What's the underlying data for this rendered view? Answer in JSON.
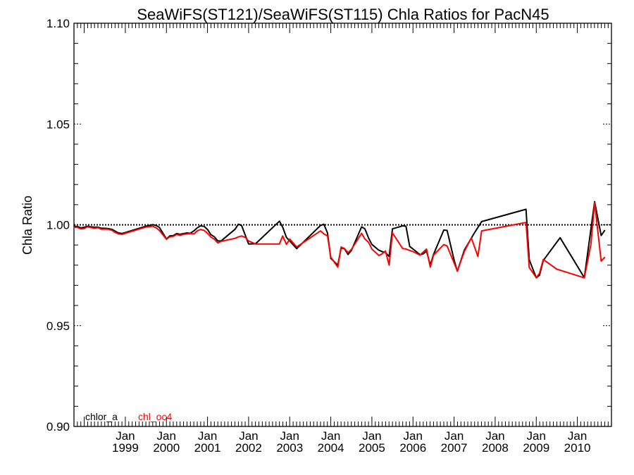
{
  "chart_data": {
    "type": "line",
    "title": "SeaWiFS(ST121)/SeaWiFS(ST115)  Chla Ratios for PacN45",
    "xlabel": "",
    "ylabel": "Chla Ratio",
    "ylim": [
      0.9,
      1.1
    ],
    "xlim": [
      1997.75,
      2010.83
    ],
    "y_ticks": [
      {
        "value": 0.9,
        "label": "0.90"
      },
      {
        "value": 0.95,
        "label": "0.95"
      },
      {
        "value": 1.0,
        "label": "1.00"
      },
      {
        "value": 1.05,
        "label": "1.05"
      },
      {
        "value": 1.1,
        "label": "1.10"
      }
    ],
    "x_ticks": [
      {
        "value": 1999,
        "label_top": "Jan",
        "label_bottom": "1999"
      },
      {
        "value": 2000,
        "label_top": "Jan",
        "label_bottom": "2000"
      },
      {
        "value": 2001,
        "label_top": "Jan",
        "label_bottom": "2001"
      },
      {
        "value": 2002,
        "label_top": "Jan",
        "label_bottom": "2002"
      },
      {
        "value": 2003,
        "label_top": "Jan",
        "label_bottom": "2003"
      },
      {
        "value": 2004,
        "label_top": "Jan",
        "label_bottom": "2004"
      },
      {
        "value": 2005,
        "label_top": "Jan",
        "label_bottom": "2005"
      },
      {
        "value": 2006,
        "label_top": "Jan",
        "label_bottom": "2006"
      },
      {
        "value": 2007,
        "label_top": "Jan",
        "label_bottom": "2007"
      },
      {
        "value": 2008,
        "label_top": "Jan",
        "label_bottom": "2008"
      },
      {
        "value": 2009,
        "label_top": "Jan",
        "label_bottom": "2009"
      },
      {
        "value": 2010,
        "label_top": "Jan",
        "label_bottom": "2010"
      }
    ],
    "reference_line": {
      "y": 1.0,
      "style": "dotted",
      "color": "#000000"
    },
    "legend": {
      "placement": "bottom-left"
    },
    "series": [
      {
        "name": "chlor_a",
        "color": "#000000",
        "points": [
          [
            1997.75,
            0.9992
          ],
          [
            1997.83,
            0.9992
          ],
          [
            1997.92,
            0.9985
          ],
          [
            1998.0,
            0.9988
          ],
          [
            1998.08,
            0.9993
          ],
          [
            1998.17,
            0.999
          ],
          [
            1998.25,
            0.9988
          ],
          [
            1998.33,
            0.9989
          ],
          [
            1998.42,
            0.9983
          ],
          [
            1998.5,
            0.9983
          ],
          [
            1998.58,
            0.9981
          ],
          [
            1998.67,
            0.9978
          ],
          [
            1998.75,
            0.9969
          ],
          [
            1998.83,
            0.996
          ],
          [
            1998.92,
            0.9957
          ],
          [
            1999.0,
            0.9962
          ],
          [
            1999.5,
            0.9993
          ],
          [
            1999.67,
            1.0001
          ],
          [
            1999.75,
            0.9997
          ],
          [
            1999.83,
            0.9987
          ],
          [
            2000.0,
            0.993
          ],
          [
            2000.08,
            0.9945
          ],
          [
            2000.17,
            0.9947
          ],
          [
            2000.25,
            0.9957
          ],
          [
            2000.33,
            0.9953
          ],
          [
            2000.42,
            0.9957
          ],
          [
            2000.5,
            0.996
          ],
          [
            2000.58,
            0.9958
          ],
          [
            2000.67,
            0.997
          ],
          [
            2000.75,
            0.9985
          ],
          [
            2000.83,
            0.9995
          ],
          [
            2000.92,
            0.9992
          ],
          [
            2001.0,
            0.9977
          ],
          [
            2001.08,
            0.9952
          ],
          [
            2001.17,
            0.994
          ],
          [
            2001.25,
            0.992
          ],
          [
            2001.33,
            0.992
          ],
          [
            2001.67,
            0.9978
          ],
          [
            2001.75,
            1.0003
          ],
          [
            2001.83,
            0.9996
          ],
          [
            2002.0,
            0.9905
          ],
          [
            2002.17,
            0.9906
          ],
          [
            2002.75,
            1.0018
          ],
          [
            2002.83,
            0.9988
          ],
          [
            2002.92,
            0.9938
          ],
          [
            2003.17,
            0.9882
          ],
          [
            2003.75,
            0.9997
          ],
          [
            2003.83,
            1.0003
          ],
          [
            2003.92,
            0.996
          ],
          [
            2004.0,
            0.9834
          ],
          [
            2004.17,
            0.98
          ],
          [
            2004.25,
            0.9884
          ],
          [
            2004.33,
            0.9882
          ],
          [
            2004.42,
            0.9853
          ],
          [
            2004.5,
            0.9873
          ],
          [
            2004.75,
            0.999
          ],
          [
            2004.83,
            0.998
          ],
          [
            2004.92,
            0.9934
          ],
          [
            2005.0,
            0.9903
          ],
          [
            2005.17,
            0.9874
          ],
          [
            2005.25,
            0.9867
          ],
          [
            2005.33,
            0.9863
          ],
          [
            2005.42,
            0.9843
          ],
          [
            2005.5,
            0.998
          ],
          [
            2005.75,
            0.9995
          ],
          [
            2005.83,
            0.9993
          ],
          [
            2005.92,
            0.9893
          ],
          [
            2006.0,
            0.988
          ],
          [
            2006.17,
            0.9852
          ],
          [
            2006.25,
            0.9856
          ],
          [
            2006.33,
            0.987
          ],
          [
            2006.42,
            0.98
          ],
          [
            2006.5,
            0.9853
          ],
          [
            2006.75,
            0.9974
          ],
          [
            2006.83,
            0.9972
          ],
          [
            2007.0,
            0.9826
          ],
          [
            2007.08,
            0.977
          ],
          [
            2007.25,
            0.9875
          ],
          [
            2007.5,
            0.9962
          ],
          [
            2007.67,
            1.0016
          ],
          [
            2008.75,
            1.0077
          ],
          [
            2008.83,
            0.9827
          ],
          [
            2009.0,
            0.9737
          ],
          [
            2009.08,
            0.975
          ],
          [
            2009.17,
            0.9823
          ],
          [
            2009.58,
            0.9936
          ],
          [
            2010.17,
            0.9738
          ],
          [
            2010.42,
            1.0115
          ],
          [
            2010.58,
            0.9947
          ],
          [
            2010.67,
            0.9974
          ]
        ]
      },
      {
        "name": "chl_oc4",
        "color": "#ff0000",
        "points": [
          [
            1997.75,
            0.9988
          ],
          [
            1997.83,
            0.9987
          ],
          [
            1997.92,
            0.998
          ],
          [
            1998.0,
            0.9982
          ],
          [
            1998.08,
            0.999
          ],
          [
            1998.17,
            0.9986
          ],
          [
            1998.25,
            0.9983
          ],
          [
            1998.33,
            0.9986
          ],
          [
            1998.42,
            0.9978
          ],
          [
            1998.5,
            0.9979
          ],
          [
            1998.58,
            0.9978
          ],
          [
            1998.67,
            0.9973
          ],
          [
            1998.75,
            0.9963
          ],
          [
            1998.83,
            0.9955
          ],
          [
            1998.92,
            0.9953
          ],
          [
            1999.0,
            0.9958
          ],
          [
            1999.5,
            0.9989
          ],
          [
            1999.67,
            0.9993
          ],
          [
            1999.75,
            0.9985
          ],
          [
            1999.83,
            0.9972
          ],
          [
            2000.0,
            0.9928
          ],
          [
            2000.08,
            0.994
          ],
          [
            2000.17,
            0.9943
          ],
          [
            2000.25,
            0.9952
          ],
          [
            2000.33,
            0.9948
          ],
          [
            2000.42,
            0.9953
          ],
          [
            2000.5,
            0.9955
          ],
          [
            2000.58,
            0.9957
          ],
          [
            2000.67,
            0.9955
          ],
          [
            2000.75,
            0.997
          ],
          [
            2000.83,
            0.9977
          ],
          [
            2000.92,
            0.9972
          ],
          [
            2001.0,
            0.9958
          ],
          [
            2001.08,
            0.994
          ],
          [
            2001.17,
            0.9928
          ],
          [
            2001.25,
            0.991
          ],
          [
            2001.33,
            0.9918
          ],
          [
            2001.67,
            0.9933
          ],
          [
            2001.75,
            0.994
          ],
          [
            2001.83,
            0.9945
          ],
          [
            2001.92,
            0.9937
          ],
          [
            2002.0,
            0.992
          ],
          [
            2002.17,
            0.9905
          ],
          [
            2002.75,
            0.9905
          ],
          [
            2002.83,
            0.9945
          ],
          [
            2002.92,
            0.9903
          ],
          [
            2003.0,
            0.993
          ],
          [
            2003.17,
            0.989
          ],
          [
            2003.75,
            0.997
          ],
          [
            2003.83,
            0.9955
          ],
          [
            2003.92,
            0.9945
          ],
          [
            2004.0,
            0.984
          ],
          [
            2004.17,
            0.979
          ],
          [
            2004.25,
            0.989
          ],
          [
            2004.33,
            0.9883
          ],
          [
            2004.42,
            0.9862
          ],
          [
            2004.5,
            0.9878
          ],
          [
            2004.75,
            0.9958
          ],
          [
            2004.83,
            0.993
          ],
          [
            2004.92,
            0.9913
          ],
          [
            2005.0,
            0.988
          ],
          [
            2005.17,
            0.9848
          ],
          [
            2005.25,
            0.9856
          ],
          [
            2005.33,
            0.987
          ],
          [
            2005.42,
            0.98
          ],
          [
            2005.5,
            0.996
          ],
          [
            2005.75,
            0.9882
          ],
          [
            2005.83,
            0.988
          ],
          [
            2006.0,
            0.9867
          ],
          [
            2006.17,
            0.985
          ],
          [
            2006.33,
            0.988
          ],
          [
            2006.42,
            0.979
          ],
          [
            2006.5,
            0.985
          ],
          [
            2006.75,
            0.9902
          ],
          [
            2006.83,
            0.9895
          ],
          [
            2007.08,
            0.9772
          ],
          [
            2007.25,
            0.9868
          ],
          [
            2007.42,
            0.9935
          ],
          [
            2007.58,
            0.9843
          ],
          [
            2007.67,
            0.997
          ],
          [
            2008.75,
            1.0012
          ],
          [
            2008.83,
            0.9788
          ],
          [
            2009.0,
            0.9738
          ],
          [
            2009.08,
            0.976
          ],
          [
            2009.17,
            0.9828
          ],
          [
            2009.5,
            0.978
          ],
          [
            2010.17,
            0.9737
          ],
          [
            2010.33,
            0.9903
          ],
          [
            2010.42,
            1.011
          ],
          [
            2010.58,
            0.982
          ],
          [
            2010.67,
            0.984
          ]
        ]
      }
    ]
  }
}
